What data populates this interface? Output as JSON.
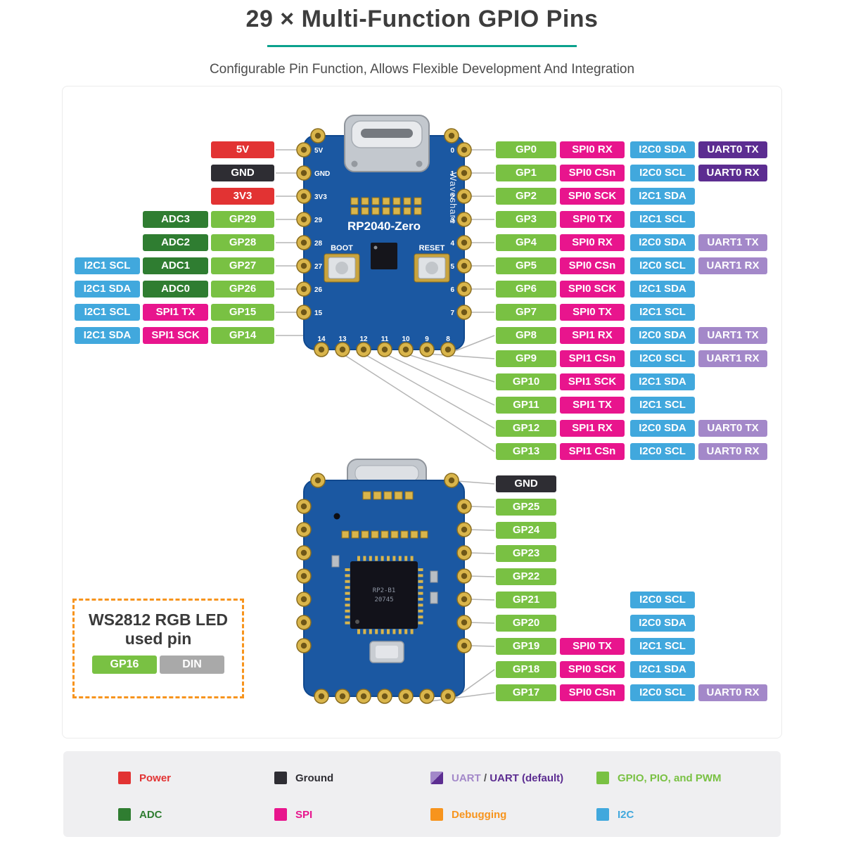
{
  "title": "29 × Multi-Function GPIO Pins",
  "subtitle": "Configurable Pin Function, Allows Flexible Development And Integration",
  "colors": {
    "power": "#e23333",
    "ground": "#2e2d33",
    "gpio": "#79c143",
    "adc": "#2f7d31",
    "spi": "#e8158d",
    "i2c": "#41a8dd",
    "uart": "#a388c9",
    "uart_default": "#5c2d91",
    "debug": "#f7941d",
    "din": "#a9a9a9",
    "plain": "#555555"
  },
  "board_front": {
    "name": "RP2040-Zero",
    "brand": "Waveshare",
    "boot_label": "BOOT",
    "reset_label": "RESET",
    "left_pin_numbers": [
      "5V",
      "GND",
      "3V3",
      "29",
      "28",
      "27",
      "26",
      "15"
    ],
    "bottom_pin_numbers": [
      "14",
      "13",
      "12",
      "11",
      "10",
      "9",
      "8"
    ],
    "right_pin_numbers": [
      "0",
      "1",
      "2",
      "3",
      "4",
      "5",
      "6",
      "7"
    ]
  },
  "board_back": {
    "chip_line1": "RP2-B1",
    "chip_line2": "20745"
  },
  "left_rows": [
    [
      {
        "label": "5V",
        "type": "power"
      }
    ],
    [
      {
        "label": "GND",
        "type": "ground"
      }
    ],
    [
      {
        "label": "3V3",
        "type": "power"
      }
    ],
    [
      {
        "label": "ADC3",
        "type": "adc"
      },
      {
        "label": "GP29",
        "type": "gpio"
      }
    ],
    [
      {
        "label": "ADC2",
        "type": "adc"
      },
      {
        "label": "GP28",
        "type": "gpio"
      }
    ],
    [
      {
        "label": "I2C1 SCL",
        "type": "i2c"
      },
      {
        "label": "ADC1",
        "type": "adc"
      },
      {
        "label": "GP27",
        "type": "gpio"
      }
    ],
    [
      {
        "label": "I2C1 SDA",
        "type": "i2c"
      },
      {
        "label": "ADC0",
        "type": "adc"
      },
      {
        "label": "GP26",
        "type": "gpio"
      }
    ],
    [
      {
        "label": "I2C1 SCL",
        "type": "i2c"
      },
      {
        "label": "SPI1 TX",
        "type": "spi"
      },
      {
        "label": "GP15",
        "type": "gpio"
      }
    ],
    [
      {
        "label": "I2C1 SDA",
        "type": "i2c"
      },
      {
        "label": "SPI1 SCK",
        "type": "spi"
      },
      {
        "label": "GP14",
        "type": "gpio"
      }
    ]
  ],
  "right_rows": [
    [
      {
        "label": "GP0",
        "type": "gpio",
        "col": 0
      },
      {
        "label": "SPI0 RX",
        "type": "spi",
        "col": 1
      },
      {
        "label": "I2C0 SDA",
        "type": "i2c",
        "col": 2
      },
      {
        "label": "UART0 TX",
        "type": "uart_default",
        "col": 3
      }
    ],
    [
      {
        "label": "GP1",
        "type": "gpio",
        "col": 0
      },
      {
        "label": "SPI0 CSn",
        "type": "spi",
        "col": 1
      },
      {
        "label": "I2C0 SCL",
        "type": "i2c",
        "col": 2
      },
      {
        "label": "UART0 RX",
        "type": "uart_default",
        "col": 3
      }
    ],
    [
      {
        "label": "GP2",
        "type": "gpio",
        "col": 0
      },
      {
        "label": "SPI0 SCK",
        "type": "spi",
        "col": 1
      },
      {
        "label": "I2C1 SDA",
        "type": "i2c",
        "col": 2
      }
    ],
    [
      {
        "label": "GP3",
        "type": "gpio",
        "col": 0
      },
      {
        "label": "SPI0 TX",
        "type": "spi",
        "col": 1
      },
      {
        "label": "I2C1 SCL",
        "type": "i2c",
        "col": 2
      }
    ],
    [
      {
        "label": "GP4",
        "type": "gpio",
        "col": 0
      },
      {
        "label": "SPI0 RX",
        "type": "spi",
        "col": 1
      },
      {
        "label": "I2C0 SDA",
        "type": "i2c",
        "col": 2
      },
      {
        "label": "UART1 TX",
        "type": "uart",
        "col": 3
      }
    ],
    [
      {
        "label": "GP5",
        "type": "gpio",
        "col": 0
      },
      {
        "label": "SPI0 CSn",
        "type": "spi",
        "col": 1
      },
      {
        "label": "I2C0 SCL",
        "type": "i2c",
        "col": 2
      },
      {
        "label": "UART1 RX",
        "type": "uart",
        "col": 3
      }
    ],
    [
      {
        "label": "GP6",
        "type": "gpio",
        "col": 0
      },
      {
        "label": "SPI0 SCK",
        "type": "spi",
        "col": 1
      },
      {
        "label": "I2C1 SDA",
        "type": "i2c",
        "col": 2
      }
    ],
    [
      {
        "label": "GP7",
        "type": "gpio",
        "col": 0
      },
      {
        "label": "SPI0 TX",
        "type": "spi",
        "col": 1
      },
      {
        "label": "I2C1 SCL",
        "type": "i2c",
        "col": 2
      }
    ],
    [
      {
        "label": "GP8",
        "type": "gpio",
        "col": 0
      },
      {
        "label": "SPI1 RX",
        "type": "spi",
        "col": 1
      },
      {
        "label": "I2C0 SDA",
        "type": "i2c",
        "col": 2
      },
      {
        "label": "UART1 TX",
        "type": "uart",
        "col": 3
      }
    ],
    [
      {
        "label": "GP9",
        "type": "gpio",
        "col": 0
      },
      {
        "label": "SPI1 CSn",
        "type": "spi",
        "col": 1
      },
      {
        "label": "I2C0 SCL",
        "type": "i2c",
        "col": 2
      },
      {
        "label": "UART1 RX",
        "type": "uart",
        "col": 3
      }
    ],
    [
      {
        "label": "GP10",
        "type": "gpio",
        "col": 0
      },
      {
        "label": "SPI1 SCK",
        "type": "spi",
        "col": 1
      },
      {
        "label": "I2C1 SDA",
        "type": "i2c",
        "col": 2
      }
    ],
    [
      {
        "label": "GP11",
        "type": "gpio",
        "col": 0
      },
      {
        "label": "SPI1 TX",
        "type": "spi",
        "col": 1
      },
      {
        "label": "I2C1 SCL",
        "type": "i2c",
        "col": 2
      }
    ],
    [
      {
        "label": "GP12",
        "type": "gpio",
        "col": 0
      },
      {
        "label": "SPI1 RX",
        "type": "spi",
        "col": 1
      },
      {
        "label": "I2C0 SDA",
        "type": "i2c",
        "col": 2
      },
      {
        "label": "UART0 TX",
        "type": "uart",
        "col": 3
      }
    ],
    [
      {
        "label": "GP13",
        "type": "gpio",
        "col": 0
      },
      {
        "label": "SPI1 CSn",
        "type": "spi",
        "col": 1
      },
      {
        "label": "I2C0 SCL",
        "type": "i2c",
        "col": 2
      },
      {
        "label": "UART0 RX",
        "type": "uart",
        "col": 3
      }
    ]
  ],
  "back_rows": [
    [
      {
        "label": "GND",
        "type": "ground",
        "col": 0
      }
    ],
    [
      {
        "label": "GP25",
        "type": "gpio",
        "col": 0
      }
    ],
    [
      {
        "label": "GP24",
        "type": "gpio",
        "col": 0
      }
    ],
    [
      {
        "label": "GP23",
        "type": "gpio",
        "col": 0
      }
    ],
    [
      {
        "label": "GP22",
        "type": "gpio",
        "col": 0
      }
    ],
    [
      {
        "label": "GP21",
        "type": "gpio",
        "col": 0
      },
      {
        "label": "I2C0 SCL",
        "type": "i2c",
        "col": 2
      }
    ],
    [
      {
        "label": "GP20",
        "type": "gpio",
        "col": 0
      },
      {
        "label": "I2C0 SDA",
        "type": "i2c",
        "col": 2
      }
    ],
    [
      {
        "label": "GP19",
        "type": "gpio",
        "col": 0
      },
      {
        "label": "SPI0 TX",
        "type": "spi",
        "col": 1
      },
      {
        "label": "I2C1 SCL",
        "type": "i2c",
        "col": 2
      }
    ],
    [
      {
        "label": "GP18",
        "type": "gpio",
        "col": 0
      },
      {
        "label": "SPI0 SCK",
        "type": "spi",
        "col": 1
      },
      {
        "label": "I2C1 SDA",
        "type": "i2c",
        "col": 2
      }
    ],
    [
      {
        "label": "GP17",
        "type": "gpio",
        "col": 0
      },
      {
        "label": "SPI0 CSn",
        "type": "spi",
        "col": 1
      },
      {
        "label": "I2C0 SCL",
        "type": "i2c",
        "col": 2
      },
      {
        "label": "UART0 RX",
        "type": "uart",
        "col": 3
      }
    ]
  ],
  "ws2812": {
    "title_line1": "WS2812 RGB LED",
    "title_line2": "used pin",
    "pins": [
      {
        "label": "GP16",
        "type": "gpio"
      },
      {
        "label": "DIN",
        "type": "din"
      }
    ]
  },
  "legend": [
    {
      "parts": [
        {
          "text": "Power",
          "type": "power"
        }
      ],
      "swatch": [
        "power"
      ]
    },
    {
      "parts": [
        {
          "text": "Ground",
          "type": "ground"
        }
      ],
      "swatch": [
        "ground"
      ]
    },
    {
      "parts": [
        {
          "text": "UART",
          "type": "uart"
        },
        {
          "text": " / ",
          "type": "plain"
        },
        {
          "text": "UART (default)",
          "type": "uart_default"
        }
      ],
      "swatch": [
        "uart",
        "uart_default"
      ]
    },
    {
      "parts": [
        {
          "text": "GPIO, PIO, and PWM",
          "type": "gpio"
        }
      ],
      "swatch": [
        "gpio"
      ]
    },
    {
      "parts": [
        {
          "text": "ADC",
          "type": "adc"
        }
      ],
      "swatch": [
        "adc"
      ]
    },
    {
      "parts": [
        {
          "text": "SPI",
          "type": "spi"
        }
      ],
      "swatch": [
        "spi"
      ]
    },
    {
      "parts": [
        {
          "text": "Debugging",
          "type": "debug"
        }
      ],
      "swatch": [
        "debug"
      ]
    },
    {
      "parts": [
        {
          "text": "I2C",
          "type": "i2c"
        }
      ],
      "swatch": [
        "i2c"
      ]
    }
  ]
}
